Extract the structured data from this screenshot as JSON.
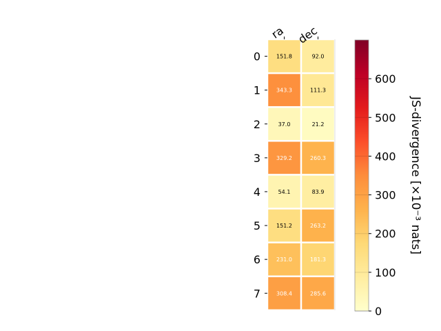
{
  "chart_data": {
    "type": "heatmap",
    "columns": [
      "ra",
      "dec"
    ],
    "rows": [
      "0",
      "1",
      "2",
      "3",
      "4",
      "5",
      "6",
      "7"
    ],
    "values": [
      [
        151.8,
        92.0
      ],
      [
        343.3,
        111.3
      ],
      [
        37.0,
        21.2
      ],
      [
        329.2,
        260.3
      ],
      [
        54.1,
        83.9
      ],
      [
        151.2,
        263.2
      ],
      [
        231.0,
        181.3
      ],
      [
        308.4,
        285.6
      ]
    ],
    "value_labels": [
      [
        "151.8",
        "92.0"
      ],
      [
        "343.3",
        "111.3"
      ],
      [
        "37.0",
        "21.2"
      ],
      [
        "329.2",
        "260.3"
      ],
      [
        "54.1",
        "83.9"
      ],
      [
        "151.2",
        "263.2"
      ],
      [
        "231.0",
        "181.3"
      ],
      [
        "308.4",
        "285.6"
      ]
    ],
    "colorbar": {
      "label": "JS-divergence [×10⁻³ nats]",
      "range": [
        0,
        700
      ],
      "ticks": [
        0,
        100,
        200,
        300,
        400,
        500,
        600
      ],
      "tick_labels": [
        "0",
        "100",
        "200",
        "300",
        "400",
        "500",
        "600"
      ],
      "colormap": "YlOrRd"
    },
    "colors": {
      "cmap_stops": [
        "#ffffcc",
        "#ffeda0",
        "#fed976",
        "#feb24c",
        "#fd8d3c",
        "#fc4e2a",
        "#e31a1c",
        "#bd0026",
        "#800026"
      ],
      "text_dark": "#000000",
      "text_light": "#ffffff"
    },
    "light_text_threshold": 175
  }
}
